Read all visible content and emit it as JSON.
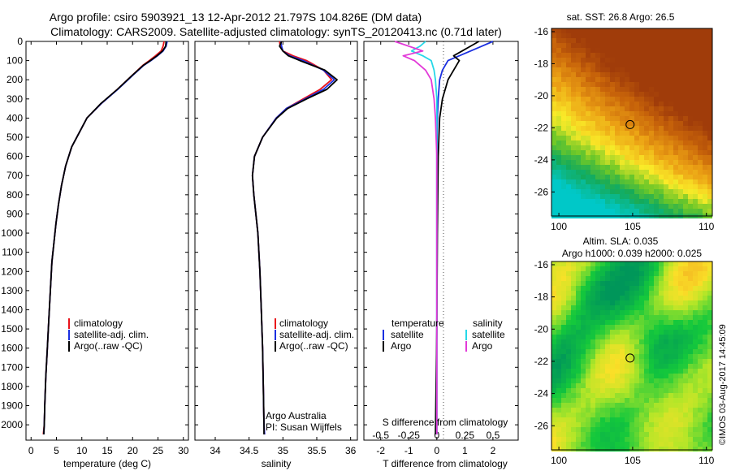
{
  "header": {
    "line1": "Argo profile: csiro 5903921_13 12-Apr-2012 21.797S 104.826E (DM data)",
    "line2": "Climatology: CARS2009. Satellite-adjusted climatology: synTS_20120413.nc (0.71d later)"
  },
  "stamp": "©IMOS 03-Aug-2017 14:45:09",
  "colors": {
    "clim": "#e8121a",
    "sat": "#1a2fe0",
    "argo": "#000000",
    "sal_sat": "#26d8e8",
    "sal_argo": "#e23ad8"
  },
  "chart_data": [
    {
      "type": "line",
      "id": "temperature-profile",
      "xlabel": "temperature (deg C)",
      "xlim": [
        -1,
        31
      ],
      "ylim": [
        2080,
        0
      ],
      "xticks": [
        0,
        5,
        10,
        15,
        20,
        25,
        30
      ],
      "yticks": [
        0,
        100,
        200,
        300,
        400,
        500,
        600,
        700,
        800,
        900,
        1000,
        1100,
        1200,
        1300,
        1400,
        1500,
        1600,
        1700,
        1800,
        1900,
        2000
      ],
      "legend": [
        "climatology",
        "satellite-adj. clim.",
        "Argo(..raw -QC)"
      ],
      "series": [
        {
          "name": "climatology",
          "color": "#e8121a",
          "x": [
            26.2,
            26.0,
            25.6,
            24.5,
            23.3,
            22.0,
            20.0,
            17.0,
            13.8,
            11.0,
            10.0,
            8.0,
            6.8,
            6.0,
            5.4,
            4.9,
            4.5,
            4.1,
            3.8,
            3.5,
            3.2,
            2.9,
            2.7,
            2.6,
            2.4
          ],
          "y": [
            0,
            25,
            50,
            75,
            100,
            125,
            175,
            250,
            325,
            400,
            450,
            550,
            650,
            750,
            850,
            950,
            1050,
            1150,
            1300,
            1450,
            1600,
            1750,
            1900,
            2000,
            2050
          ]
        },
        {
          "name": "satellite-adj. clim.",
          "color": "#1a2fe0",
          "x": [
            26.8,
            26.6,
            26.0,
            24.9,
            23.6,
            22.2,
            20.1,
            17.1,
            13.8,
            11.0,
            10.0,
            8.0,
            6.8,
            6.0,
            5.4,
            4.9,
            4.5,
            4.1,
            3.8,
            3.5,
            3.2,
            2.9,
            2.7,
            2.6,
            2.5
          ],
          "y": [
            0,
            25,
            50,
            75,
            100,
            125,
            175,
            250,
            325,
            400,
            450,
            550,
            650,
            750,
            850,
            950,
            1050,
            1150,
            1300,
            1450,
            1600,
            1750,
            1900,
            2000,
            2050
          ]
        },
        {
          "name": "Argo(..raw -QC)",
          "color": "#000000",
          "x": [
            26.6,
            26.5,
            25.9,
            24.8,
            23.5,
            22.1,
            20.0,
            17.0,
            13.7,
            11.0,
            10.0,
            8.0,
            6.8,
            6.0,
            5.4,
            4.9,
            4.5,
            4.1,
            3.8,
            3.5,
            3.2,
            2.9,
            2.7,
            2.6,
            2.5
          ],
          "y": [
            0,
            25,
            50,
            75,
            100,
            125,
            175,
            250,
            325,
            400,
            450,
            550,
            650,
            750,
            850,
            950,
            1050,
            1150,
            1300,
            1450,
            1600,
            1750,
            1900,
            2000,
            2050
          ]
        }
      ]
    },
    {
      "type": "line",
      "id": "salinity-profile",
      "xlabel": "salinity",
      "xlim": [
        33.7,
        36.1
      ],
      "ylim": [
        2080,
        0
      ],
      "xticks": [
        34,
        34.5,
        35,
        35.5,
        36
      ],
      "legend": [
        "climatology",
        "satellite-adj. clim.",
        "Argo(..raw -QC)"
      ],
      "annotation": [
        "Argo Australia",
        "PI: Susan Wijffels"
      ],
      "series": [
        {
          "name": "climatology",
          "color": "#e8121a",
          "x": [
            34.95,
            34.96,
            35.0,
            35.15,
            35.35,
            35.6,
            35.72,
            35.55,
            35.3,
            35.05,
            34.9,
            34.7,
            34.58,
            34.55,
            34.57,
            34.6,
            34.63,
            34.66,
            34.68,
            34.7,
            34.71,
            34.72,
            34.73
          ],
          "y": [
            0,
            25,
            50,
            75,
            100,
            150,
            200,
            250,
            300,
            350,
            400,
            500,
            600,
            700,
            800,
            900,
            1000,
            1200,
            1400,
            1600,
            1800,
            2000,
            2050
          ]
        },
        {
          "name": "satellite-adj. clim.",
          "color": "#1a2fe0",
          "x": [
            34.97,
            34.98,
            35.0,
            35.1,
            35.3,
            35.6,
            35.76,
            35.6,
            35.33,
            35.05,
            34.9,
            34.7,
            34.58,
            34.55,
            34.57,
            34.6,
            34.63,
            34.66,
            34.68,
            34.7,
            34.71,
            34.72,
            34.73
          ],
          "y": [
            0,
            25,
            50,
            75,
            100,
            150,
            200,
            250,
            300,
            350,
            400,
            500,
            600,
            700,
            800,
            900,
            1000,
            1200,
            1400,
            1600,
            1800,
            2000,
            2050
          ]
        },
        {
          "name": "Argo(..raw -QC)",
          "color": "#000000",
          "x": [
            34.98,
            34.95,
            35.0,
            35.08,
            35.25,
            35.62,
            35.8,
            35.65,
            35.35,
            35.07,
            34.91,
            34.7,
            34.58,
            34.55,
            34.57,
            34.6,
            34.63,
            34.66,
            34.68,
            34.7,
            34.71,
            34.72,
            34.72
          ],
          "y": [
            0,
            25,
            50,
            75,
            100,
            150,
            200,
            250,
            300,
            350,
            400,
            500,
            600,
            700,
            800,
            900,
            1000,
            1200,
            1400,
            1600,
            1800,
            2000,
            2050
          ]
        }
      ]
    },
    {
      "type": "line",
      "id": "difference-profile",
      "xlabel": "T difference from climatology",
      "xlabel_top": "S difference from climatology",
      "xlim": [
        -2.6,
        2.9
      ],
      "ylim": [
        2080,
        0
      ],
      "xticks": [
        -2,
        -1,
        0,
        1,
        2
      ],
      "xticks_s": [
        "-0.5",
        "-0.25",
        "0",
        "0.25",
        "0.5"
      ],
      "legend_headers": [
        "temperature",
        "salinity"
      ],
      "legend": [
        "satellite",
        "Argo",
        "satellite",
        "Argo"
      ],
      "series": [
        {
          "name": "satellite",
          "color": "#1a2fe0",
          "x": [
            2.0,
            1.6,
            1.2,
            0.8,
            0.4,
            0.2,
            0.1,
            0.05,
            0.02,
            0.0,
            0.0,
            0.0,
            0.0
          ],
          "y": [
            0,
            25,
            50,
            75,
            100,
            150,
            200,
            300,
            400,
            600,
            1000,
            1500,
            2050
          ]
        },
        {
          "name": "Argo",
          "color": "#000000",
          "x": [
            1.5,
            1.2,
            0.9,
            0.6,
            0.8,
            0.6,
            0.4,
            0.2,
            0.1,
            0.05,
            0.02,
            0.0,
            -0.05
          ],
          "y": [
            0,
            25,
            50,
            75,
            100,
            150,
            200,
            300,
            400,
            600,
            1000,
            1500,
            2050
          ]
        },
        {
          "name": "satellite",
          "color": "#26d8e8",
          "x": [
            -0.4,
            -0.6,
            -0.9,
            -0.5,
            -0.2,
            -0.1,
            -0.05,
            0.0,
            0.0,
            0.0,
            0.0,
            0.0,
            0.0
          ],
          "y": [
            0,
            25,
            50,
            75,
            100,
            150,
            200,
            300,
            400,
            600,
            1000,
            1500,
            2050
          ]
        },
        {
          "name": "Argo",
          "color": "#e23ad8",
          "x": [
            -1.5,
            -1.0,
            -0.5,
            -1.2,
            -0.8,
            -0.4,
            -0.2,
            -0.1,
            -0.05,
            0.0,
            0.0,
            0.0,
            0.0
          ],
          "y": [
            0,
            25,
            50,
            75,
            100,
            150,
            200,
            300,
            400,
            600,
            1000,
            1500,
            2050
          ]
        }
      ]
    },
    {
      "type": "heatmap",
      "id": "sst-map",
      "title": "sat. SST: 26.8 Argo: 26.5",
      "xlim": [
        99.5,
        110.4
      ],
      "ylim": [
        -27.5,
        -15.8
      ],
      "xticks": [
        100,
        105,
        110
      ],
      "yticks": [
        -16,
        -18,
        -20,
        -22,
        -24,
        -26
      ],
      "marker": {
        "lon": 104.826,
        "lat": -21.797
      }
    },
    {
      "type": "heatmap",
      "id": "sla-map",
      "title": "Altim. SLA: 0.035",
      "subtitle": "Argo h1000: 0.039 h2000: 0.025",
      "xlim": [
        99.5,
        110.4
      ],
      "ylim": [
        -27.5,
        -15.8
      ],
      "xticks": [
        100,
        105,
        110
      ],
      "yticks": [
        -16,
        -18,
        -20,
        -22,
        -24,
        -26
      ],
      "marker": {
        "lon": 104.826,
        "lat": -21.797
      }
    }
  ]
}
